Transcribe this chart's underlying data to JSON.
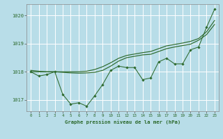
{
  "xlabel": "Graphe pression niveau de la mer (hPa)",
  "x_ticks": [
    0,
    1,
    2,
    3,
    4,
    5,
    6,
    7,
    8,
    9,
    10,
    11,
    12,
    13,
    14,
    15,
    16,
    17,
    18,
    19,
    20,
    21,
    22,
    23
  ],
  "ylim": [
    1016.6,
    1020.4
  ],
  "yticks": [
    1017,
    1018,
    1019,
    1020
  ],
  "bg_color": "#b8dde8",
  "grid_color": "#ffffff",
  "line_color": "#2d6a2d",
  "series_jagged": [
    1018.0,
    1017.85,
    1017.9,
    1018.0,
    1017.2,
    1016.85,
    1016.9,
    1016.78,
    1017.15,
    1017.55,
    1018.05,
    1018.2,
    1018.15,
    1018.15,
    1017.72,
    1017.78,
    1018.35,
    1018.48,
    1018.28,
    1018.28,
    1018.78,
    1018.88,
    1019.58,
    1020.22
  ],
  "series_smooth_top": [
    1018.05,
    1018.02,
    1018.0,
    1018.0,
    1018.0,
    1018.0,
    1018.0,
    1018.02,
    1018.08,
    1018.18,
    1018.32,
    1018.48,
    1018.58,
    1018.63,
    1018.68,
    1018.72,
    1018.82,
    1018.92,
    1018.97,
    1019.02,
    1019.08,
    1019.18,
    1019.42,
    1019.82
  ],
  "series_smooth_bot": [
    1018.0,
    1018.0,
    1018.0,
    1018.0,
    1017.98,
    1017.96,
    1017.95,
    1017.96,
    1017.98,
    1018.05,
    1018.2,
    1018.38,
    1018.5,
    1018.55,
    1018.6,
    1018.62,
    1018.72,
    1018.82,
    1018.88,
    1018.93,
    1018.98,
    1019.12,
    1019.32,
    1019.68
  ]
}
